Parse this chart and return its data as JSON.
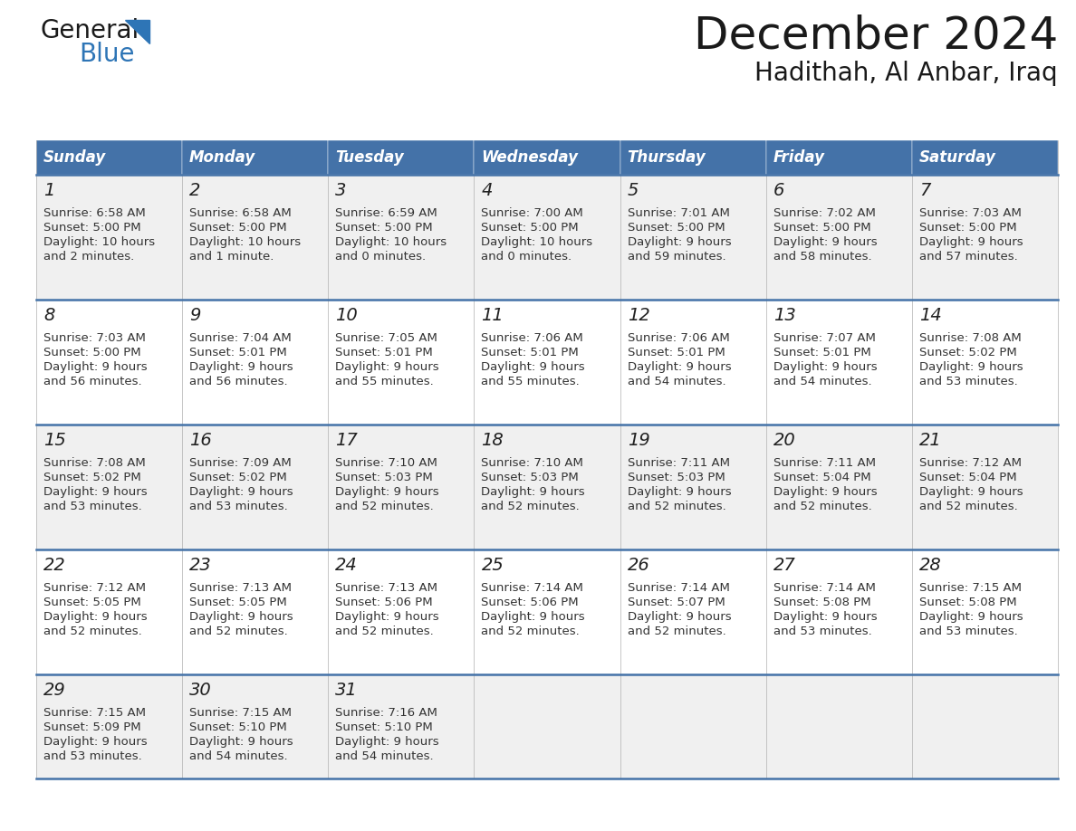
{
  "title": "December 2024",
  "subtitle": "Hadithah, Al Anbar, Iraq",
  "days_of_week": [
    "Sunday",
    "Monday",
    "Tuesday",
    "Wednesday",
    "Thursday",
    "Friday",
    "Saturday"
  ],
  "header_bg": "#4472a8",
  "header_text": "#FFFFFF",
  "row_bg_odd": "#f0f0f0",
  "row_bg_even": "#FFFFFF",
  "separator_color": "#4472a8",
  "text_color": "#333333",
  "cell_data": [
    [
      {
        "day": 1,
        "sunrise": "6:58 AM",
        "sunset": "5:00 PM",
        "daylight_line1": "10 hours",
        "daylight_line2": "and 2 minutes."
      },
      {
        "day": 2,
        "sunrise": "6:58 AM",
        "sunset": "5:00 PM",
        "daylight_line1": "10 hours",
        "daylight_line2": "and 1 minute."
      },
      {
        "day": 3,
        "sunrise": "6:59 AM",
        "sunset": "5:00 PM",
        "daylight_line1": "10 hours",
        "daylight_line2": "and 0 minutes."
      },
      {
        "day": 4,
        "sunrise": "7:00 AM",
        "sunset": "5:00 PM",
        "daylight_line1": "10 hours",
        "daylight_line2": "and 0 minutes."
      },
      {
        "day": 5,
        "sunrise": "7:01 AM",
        "sunset": "5:00 PM",
        "daylight_line1": "9 hours",
        "daylight_line2": "and 59 minutes."
      },
      {
        "day": 6,
        "sunrise": "7:02 AM",
        "sunset": "5:00 PM",
        "daylight_line1": "9 hours",
        "daylight_line2": "and 58 minutes."
      },
      {
        "day": 7,
        "sunrise": "7:03 AM",
        "sunset": "5:00 PM",
        "daylight_line1": "9 hours",
        "daylight_line2": "and 57 minutes."
      }
    ],
    [
      {
        "day": 8,
        "sunrise": "7:03 AM",
        "sunset": "5:00 PM",
        "daylight_line1": "9 hours",
        "daylight_line2": "and 56 minutes."
      },
      {
        "day": 9,
        "sunrise": "7:04 AM",
        "sunset": "5:01 PM",
        "daylight_line1": "9 hours",
        "daylight_line2": "and 56 minutes."
      },
      {
        "day": 10,
        "sunrise": "7:05 AM",
        "sunset": "5:01 PM",
        "daylight_line1": "9 hours",
        "daylight_line2": "and 55 minutes."
      },
      {
        "day": 11,
        "sunrise": "7:06 AM",
        "sunset": "5:01 PM",
        "daylight_line1": "9 hours",
        "daylight_line2": "and 55 minutes."
      },
      {
        "day": 12,
        "sunrise": "7:06 AM",
        "sunset": "5:01 PM",
        "daylight_line1": "9 hours",
        "daylight_line2": "and 54 minutes."
      },
      {
        "day": 13,
        "sunrise": "7:07 AM",
        "sunset": "5:01 PM",
        "daylight_line1": "9 hours",
        "daylight_line2": "and 54 minutes."
      },
      {
        "day": 14,
        "sunrise": "7:08 AM",
        "sunset": "5:02 PM",
        "daylight_line1": "9 hours",
        "daylight_line2": "and 53 minutes."
      }
    ],
    [
      {
        "day": 15,
        "sunrise": "7:08 AM",
        "sunset": "5:02 PM",
        "daylight_line1": "9 hours",
        "daylight_line2": "and 53 minutes."
      },
      {
        "day": 16,
        "sunrise": "7:09 AM",
        "sunset": "5:02 PM",
        "daylight_line1": "9 hours",
        "daylight_line2": "and 53 minutes."
      },
      {
        "day": 17,
        "sunrise": "7:10 AM",
        "sunset": "5:03 PM",
        "daylight_line1": "9 hours",
        "daylight_line2": "and 52 minutes."
      },
      {
        "day": 18,
        "sunrise": "7:10 AM",
        "sunset": "5:03 PM",
        "daylight_line1": "9 hours",
        "daylight_line2": "and 52 minutes."
      },
      {
        "day": 19,
        "sunrise": "7:11 AM",
        "sunset": "5:03 PM",
        "daylight_line1": "9 hours",
        "daylight_line2": "and 52 minutes."
      },
      {
        "day": 20,
        "sunrise": "7:11 AM",
        "sunset": "5:04 PM",
        "daylight_line1": "9 hours",
        "daylight_line2": "and 52 minutes."
      },
      {
        "day": 21,
        "sunrise": "7:12 AM",
        "sunset": "5:04 PM",
        "daylight_line1": "9 hours",
        "daylight_line2": "and 52 minutes."
      }
    ],
    [
      {
        "day": 22,
        "sunrise": "7:12 AM",
        "sunset": "5:05 PM",
        "daylight_line1": "9 hours",
        "daylight_line2": "and 52 minutes."
      },
      {
        "day": 23,
        "sunrise": "7:13 AM",
        "sunset": "5:05 PM",
        "daylight_line1": "9 hours",
        "daylight_line2": "and 52 minutes."
      },
      {
        "day": 24,
        "sunrise": "7:13 AM",
        "sunset": "5:06 PM",
        "daylight_line1": "9 hours",
        "daylight_line2": "and 52 minutes."
      },
      {
        "day": 25,
        "sunrise": "7:14 AM",
        "sunset": "5:06 PM",
        "daylight_line1": "9 hours",
        "daylight_line2": "and 52 minutes."
      },
      {
        "day": 26,
        "sunrise": "7:14 AM",
        "sunset": "5:07 PM",
        "daylight_line1": "9 hours",
        "daylight_line2": "and 52 minutes."
      },
      {
        "day": 27,
        "sunrise": "7:14 AM",
        "sunset": "5:08 PM",
        "daylight_line1": "9 hours",
        "daylight_line2": "and 53 minutes."
      },
      {
        "day": 28,
        "sunrise": "7:15 AM",
        "sunset": "5:08 PM",
        "daylight_line1": "9 hours",
        "daylight_line2": "and 53 minutes."
      }
    ],
    [
      {
        "day": 29,
        "sunrise": "7:15 AM",
        "sunset": "5:09 PM",
        "daylight_line1": "9 hours",
        "daylight_line2": "and 53 minutes."
      },
      {
        "day": 30,
        "sunrise": "7:15 AM",
        "sunset": "5:10 PM",
        "daylight_line1": "9 hours",
        "daylight_line2": "and 54 minutes."
      },
      {
        "day": 31,
        "sunrise": "7:16 AM",
        "sunset": "5:10 PM",
        "daylight_line1": "9 hours",
        "daylight_line2": "and 54 minutes."
      },
      null,
      null,
      null,
      null
    ]
  ],
  "logo_general_color": "#1a1a1a",
  "logo_blue_color": "#2E75B6",
  "figsize": [
    11.88,
    9.18
  ],
  "dpi": 100
}
